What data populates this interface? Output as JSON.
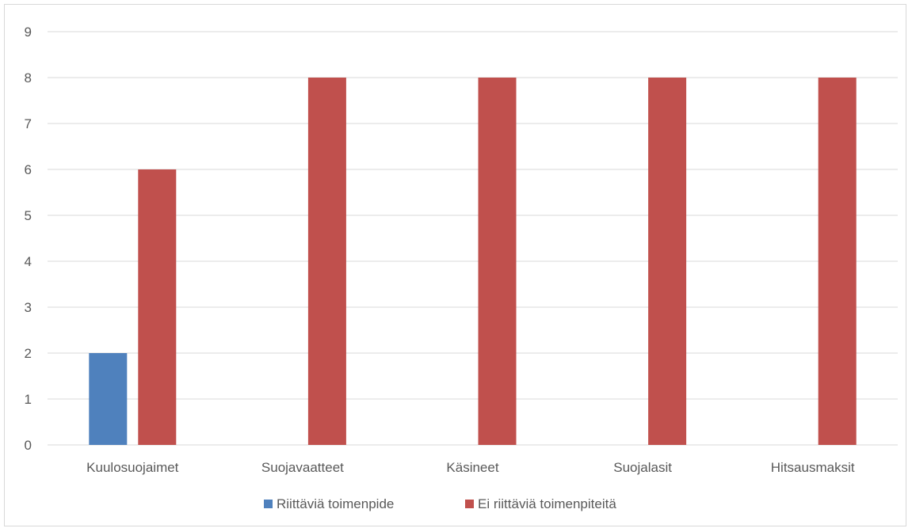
{
  "chart_data": {
    "type": "bar",
    "categories": [
      "Kuulosuojaimet",
      "Suojavaatteet",
      "Käsineet",
      "Suojalasit",
      "Hitsausmaksit"
    ],
    "series": [
      {
        "name": "Riittäviä toimenpide",
        "values": [
          2,
          0,
          0,
          0,
          0
        ],
        "color": "#4f81bd"
      },
      {
        "name": "Ei riittäviä toimenpiteitä",
        "values": [
          6,
          8,
          8,
          8,
          8
        ],
        "color": "#c0504d"
      }
    ],
    "ylim": [
      0,
      9
    ],
    "yticks": [
      "0",
      "1",
      "2",
      "3",
      "4",
      "5",
      "6",
      "7",
      "8",
      "9"
    ],
    "grid": true,
    "legend_position": "bottom",
    "title": "",
    "xlabel": "",
    "ylabel": ""
  }
}
